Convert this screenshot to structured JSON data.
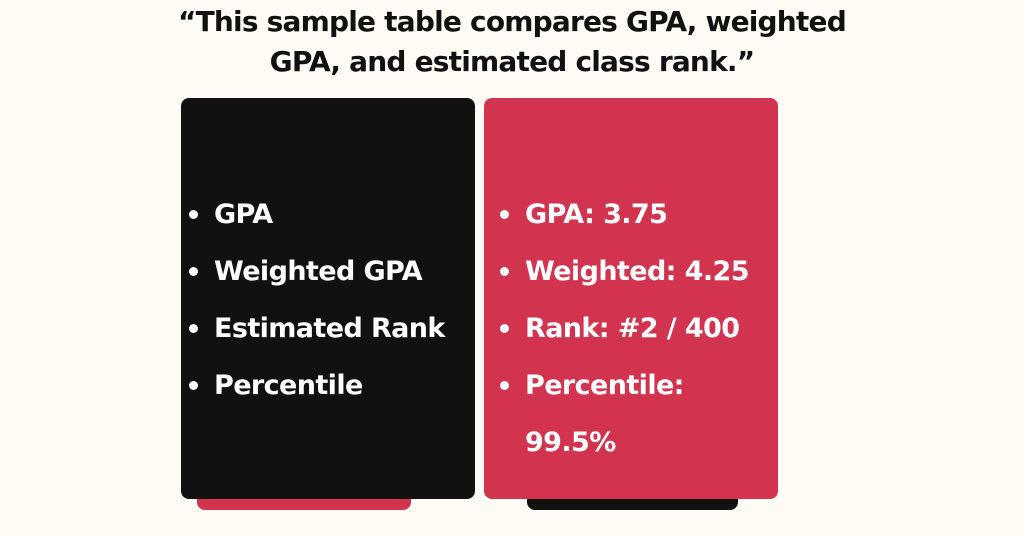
{
  "title": {
    "line1": "“This sample table compares GPA, weighted",
    "line2": "GPA, and estimated class rank.”"
  },
  "left_card": {
    "color": "#111111",
    "tab_color": "#d2334f",
    "items": [
      "GPA",
      "Weighted GPA",
      "Estimated Rank",
      "Percentile"
    ]
  },
  "right_card": {
    "color": "#d2334f",
    "tab_color": "#111111",
    "items": [
      "GPA: 3.75",
      "Weighted: 4.25",
      "Rank: #2 / 400",
      "Percentile:"
    ],
    "continuation": "99.5%"
  },
  "background": "#fdfbf4"
}
